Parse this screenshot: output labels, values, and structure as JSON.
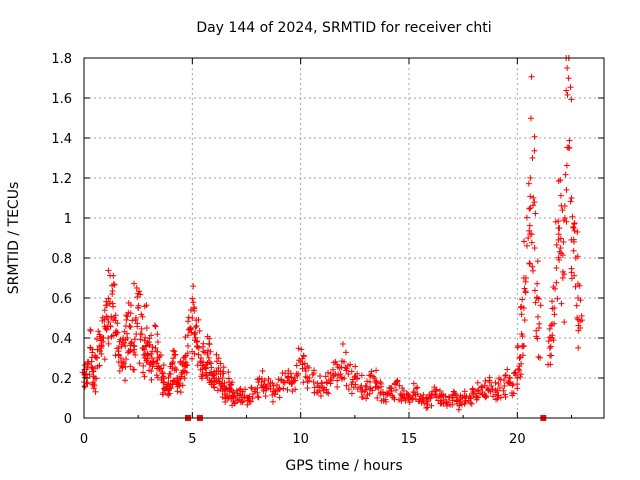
{
  "chart_data": {
    "type": "scatter",
    "title": "Day 144 of 2024, SRMTID for receiver chti",
    "xlabel": "GPS time / hours",
    "ylabel": "SRMTID / TECUs",
    "xlim": [
      0,
      24
    ],
    "ylim": [
      0,
      1.8
    ],
    "xticks": [
      0,
      5,
      10,
      15,
      20
    ],
    "xtick_labels": [
      "0",
      "5",
      "10",
      "15",
      "20"
    ],
    "yticks": [
      0,
      0.2,
      0.4,
      0.6,
      0.8,
      1.0,
      1.2,
      1.4,
      1.6,
      1.8
    ],
    "ytick_labels": [
      "0",
      "0.2",
      "0.4",
      "0.6",
      "0.8",
      "1",
      "1.2",
      "1.4",
      "1.6",
      "1.8"
    ],
    "grid": true,
    "marker": "+",
    "color": "#ff0000",
    "series": [
      {
        "name": "SRMTID",
        "x": [
          0.0,
          0.1,
          0.2,
          0.3,
          0.4,
          0.5,
          0.6,
          0.7,
          0.8,
          0.9,
          1.0,
          1.1,
          1.2,
          1.3,
          1.4,
          1.5,
          1.6,
          1.7,
          1.8,
          1.9,
          2.0,
          2.1,
          2.2,
          2.3,
          2.4,
          2.5,
          2.6,
          2.7,
          2.8,
          2.9,
          3.0,
          3.1,
          3.2,
          3.3,
          3.4,
          3.5,
          3.6,
          3.7,
          3.8,
          3.9,
          4.0,
          4.1,
          4.2,
          4.3,
          4.4,
          4.5,
          4.6,
          4.7,
          4.8,
          4.9,
          5.0,
          5.1,
          5.2,
          5.3,
          5.4,
          5.5,
          5.6,
          5.7,
          5.8,
          5.9,
          6.0,
          6.1,
          6.2,
          6.3,
          6.4,
          6.5,
          6.6,
          6.7,
          6.8,
          6.9,
          7.0,
          7.2,
          7.4,
          7.6,
          7.8,
          8.0,
          8.2,
          8.4,
          8.6,
          8.8,
          9.0,
          9.2,
          9.4,
          9.6,
          9.8,
          10.0,
          10.2,
          10.4,
          10.6,
          10.8,
          11.0,
          11.2,
          11.4,
          11.6,
          11.8,
          12.0,
          12.2,
          12.4,
          12.6,
          12.8,
          13.0,
          13.2,
          13.4,
          13.6,
          13.8,
          14.0,
          14.2,
          14.4,
          14.6,
          14.8,
          15.0,
          15.2,
          15.4,
          15.6,
          15.8,
          16.0,
          16.2,
          16.4,
          16.6,
          16.8,
          17.0,
          17.2,
          17.4,
          17.6,
          17.8,
          18.0,
          18.2,
          18.4,
          18.6,
          18.8,
          19.0,
          19.2,
          19.4,
          19.6,
          19.8,
          20.0,
          20.1,
          20.2,
          20.3,
          20.4,
          20.5,
          20.6,
          20.7,
          20.8,
          20.9,
          21.0,
          21.5,
          21.6,
          21.7,
          21.8,
          21.9,
          22.0,
          22.1,
          22.2,
          22.3,
          22.4,
          22.5,
          22.6,
          22.7,
          22.8,
          22.9
        ],
        "y": [
          0.18,
          0.22,
          0.28,
          0.35,
          0.25,
          0.2,
          0.3,
          0.36,
          0.32,
          0.4,
          0.45,
          0.5,
          0.58,
          0.62,
          0.5,
          0.42,
          0.35,
          0.3,
          0.28,
          0.36,
          0.4,
          0.46,
          0.38,
          0.33,
          0.5,
          0.55,
          0.42,
          0.35,
          0.3,
          0.45,
          0.38,
          0.32,
          0.28,
          0.35,
          0.3,
          0.25,
          0.2,
          0.18,
          0.15,
          0.17,
          0.22,
          0.28,
          0.25,
          0.2,
          0.16,
          0.22,
          0.3,
          0.28,
          0.36,
          0.45,
          0.5,
          0.42,
          0.38,
          0.35,
          0.3,
          0.28,
          0.25,
          0.32,
          0.28,
          0.22,
          0.2,
          0.18,
          0.25,
          0.22,
          0.2,
          0.15,
          0.12,
          0.18,
          0.14,
          0.1,
          0.1,
          0.12,
          0.11,
          0.1,
          0.12,
          0.15,
          0.18,
          0.14,
          0.16,
          0.12,
          0.15,
          0.18,
          0.2,
          0.17,
          0.22,
          0.28,
          0.25,
          0.2,
          0.18,
          0.16,
          0.15,
          0.18,
          0.2,
          0.22,
          0.25,
          0.28,
          0.22,
          0.18,
          0.2,
          0.16,
          0.14,
          0.18,
          0.2,
          0.15,
          0.13,
          0.12,
          0.15,
          0.14,
          0.12,
          0.1,
          0.11,
          0.13,
          0.12,
          0.1,
          0.09,
          0.1,
          0.12,
          0.11,
          0.09,
          0.08,
          0.1,
          0.09,
          0.08,
          0.1,
          0.11,
          0.12,
          0.14,
          0.13,
          0.15,
          0.16,
          0.14,
          0.15,
          0.16,
          0.18,
          0.17,
          0.2,
          0.3,
          0.42,
          0.55,
          0.7,
          0.9,
          1.05,
          1.3,
          0.85,
          0.6,
          0.45,
          0.35,
          0.4,
          0.55,
          0.75,
          0.95,
          0.85,
          0.7,
          1.0,
          1.75,
          1.35,
          1.1,
          0.95,
          0.8,
          0.6,
          0.45
        ]
      }
    ],
    "zero_markers_x": [
      4.8,
      5.35,
      21.2
    ]
  }
}
